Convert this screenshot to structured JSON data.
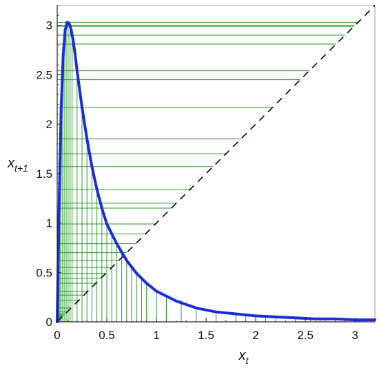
{
  "chart_data": {
    "type": "line",
    "title": "",
    "xlabel": "x_t",
    "ylabel": "x_{t+1}",
    "xlabel_parts": {
      "base": "x",
      "sub": "t"
    },
    "ylabel_parts": {
      "base": "x",
      "sub": "t+1"
    },
    "xlim": [
      0,
      3.2
    ],
    "ylim": [
      0,
      3.2
    ],
    "xticks": [
      0,
      0.5,
      1,
      1.5,
      2,
      2.5,
      3
    ],
    "yticks": [
      0,
      0.5,
      1,
      1.5,
      2,
      2.5,
      3
    ],
    "xtick_labels": [
      "0",
      "0.5",
      "1",
      "1.5",
      "2",
      "2.5",
      "3"
    ],
    "ytick_labels": [
      "0",
      "0.5",
      "1",
      "1.5",
      "2",
      "2.5",
      "3"
    ],
    "grid": false,
    "legend": "none",
    "series": [
      {
        "style": "solid-thick",
        "color": "#1a2be0",
        "x": [
          0,
          0.02,
          0.04,
          0.06,
          0.08,
          0.1,
          0.12,
          0.14,
          0.16,
          0.18,
          0.2,
          0.25,
          0.3,
          0.35,
          0.4,
          0.45,
          0.5,
          0.6,
          0.7,
          0.8,
          0.9,
          1.0,
          1.2,
          1.4,
          1.6,
          1.8,
          2.0,
          2.2,
          2.4,
          2.6,
          2.8,
          3.0,
          3.2
        ],
        "y": [
          0,
          1.2,
          2.16,
          2.69,
          2.95,
          3.03,
          3.02,
          2.96,
          2.85,
          2.71,
          2.54,
          2.17,
          1.85,
          1.57,
          1.34,
          1.15,
          0.99,
          0.79,
          0.62,
          0.49,
          0.39,
          0.31,
          0.21,
          0.14,
          0.1,
          0.08,
          0.06,
          0.05,
          0.04,
          0.03,
          0.03,
          0.02,
          0.02
        ]
      },
      {
        "style": "dashed",
        "color": "#000000",
        "x": [
          0,
          3.2
        ],
        "y": [
          0,
          3.2
        ]
      },
      {
        "style": "cobweb",
        "color": "#2a9a2a",
        "x": [
          0.02,
          0.03,
          0.05,
          0.07,
          0.09,
          0.11,
          0.13,
          0.15,
          0.2,
          0.25,
          0.3,
          0.35,
          0.4,
          0.45,
          0.5,
          0.55,
          0.6,
          0.65,
          0.7,
          0.75,
          0.8,
          0.85,
          0.9,
          1.0,
          1.1,
          1.25,
          1.4,
          1.6,
          1.8,
          1.9,
          2.0,
          2.1,
          2.2,
          2.4,
          2.55,
          2.65,
          2.8,
          2.9,
          3.0,
          3.04,
          3.08
        ],
        "y": [
          1.2,
          1.7,
          2.45,
          2.81,
          2.99,
          3.03,
          3.0,
          2.9,
          2.54,
          2.17,
          1.85,
          1.57,
          1.34,
          1.15,
          0.99,
          0.89,
          0.79,
          0.7,
          0.62,
          0.55,
          0.49,
          0.44,
          0.39,
          0.31,
          0.27,
          0.22,
          0.14,
          0.1,
          0.08,
          0.07,
          0.06,
          0.055,
          0.05,
          0.04,
          0.035,
          0.03,
          0.028,
          0.025,
          0.02,
          0.02,
          0.02
        ]
      }
    ]
  }
}
